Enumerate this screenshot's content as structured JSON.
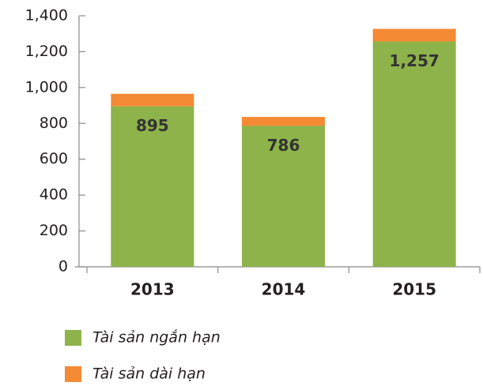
{
  "chart_data": {
    "type": "stacked_bar",
    "categories": [
      "2013",
      "2014",
      "2015"
    ],
    "series": [
      {
        "name": "Tài sản ngắn hạn",
        "color": "#8db34a",
        "values": [
          895,
          786,
          1257
        ],
        "value_labels": [
          "895",
          "786",
          "1,257"
        ]
      },
      {
        "name": "Tài sản dài hạn",
        "color": "#f58a35",
        "values": [
          70,
          50,
          70
        ]
      }
    ],
    "ylim": [
      0,
      1400
    ],
    "yticks": [
      0,
      200,
      400,
      600,
      800,
      {
        "value": 1000,
        "label": "1,000"
      },
      {
        "value": 1200,
        "label": "1,200"
      },
      {
        "value": 1400,
        "label": "1,400"
      }
    ]
  }
}
